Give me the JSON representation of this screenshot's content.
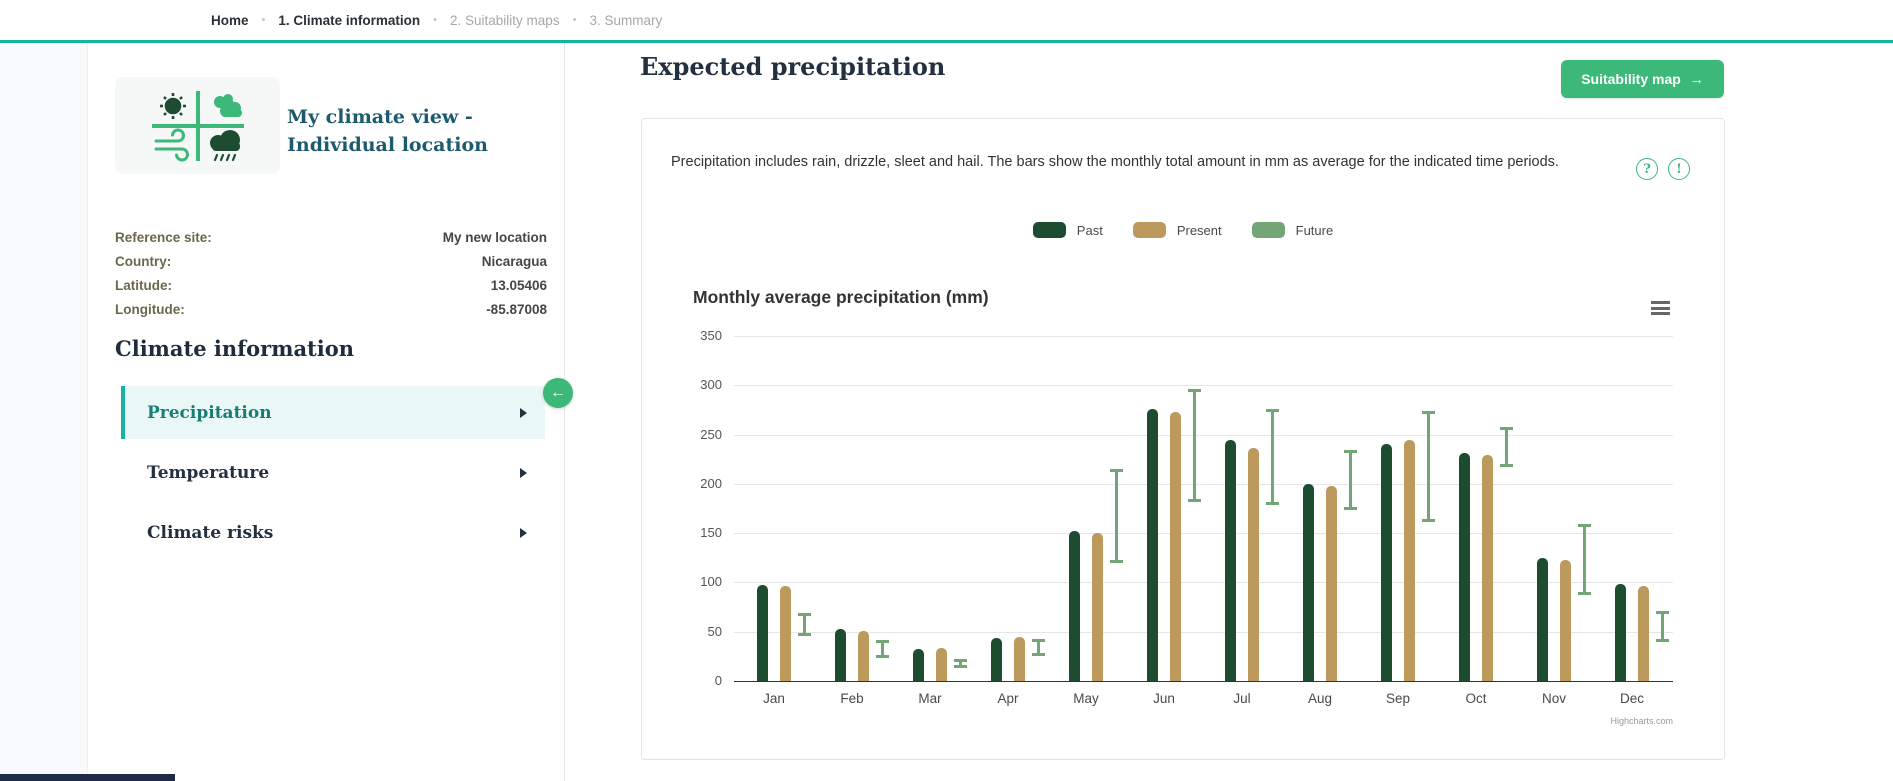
{
  "nav": {
    "separator": "•",
    "items": [
      {
        "label": "Home",
        "active": true
      },
      {
        "label": "1. Climate information",
        "active": true
      },
      {
        "label": "2. Suitability maps",
        "active": false
      },
      {
        "label": "3. Summary",
        "active": false
      }
    ]
  },
  "sidebar": {
    "title": "My climate view - Individual location",
    "info_rows": [
      {
        "label": "Reference site:",
        "value": "My new location"
      },
      {
        "label": "Country:",
        "value": "Nicaragua"
      },
      {
        "label": "Latitude:",
        "value": "13.05406"
      },
      {
        "label": "Longitude:",
        "value": "-85.87008"
      }
    ],
    "section_heading": "Climate information",
    "menu": [
      {
        "label": "Precipitation",
        "active": true
      },
      {
        "label": "Temperature",
        "active": false
      },
      {
        "label": "Climate risks",
        "active": false
      }
    ],
    "collapse_arrow": "←"
  },
  "main": {
    "page_title": "Expected precipitation",
    "suitability_button": {
      "label": "Suitability map",
      "arrow": "→"
    },
    "description": "Precipitation includes rain, drizzle, sleet and hail. The bars show the monthly total amount in mm as average for the indicated time periods.",
    "help": {
      "question": "?",
      "alert": "!"
    }
  },
  "chart_data": {
    "type": "bar",
    "title": "Monthly average precipitation (mm)",
    "categories": [
      "Jan",
      "Feb",
      "Mar",
      "Apr",
      "May",
      "Jun",
      "Jul",
      "Aug",
      "Sep",
      "Oct",
      "Nov",
      "Dec"
    ],
    "series": [
      {
        "name": "Past",
        "type": "column",
        "color": "#1e4c30",
        "values": [
          97,
          53,
          32,
          44,
          152,
          276,
          245,
          200,
          240,
          231,
          125,
          98
        ]
      },
      {
        "name": "Present",
        "type": "column",
        "color": "#bc9a5e",
        "values": [
          96,
          51,
          33,
          45,
          150,
          273,
          236,
          198,
          244,
          229,
          123,
          96
        ]
      },
      {
        "name": "Future",
        "type": "errorbar",
        "color": "#74a577",
        "ranges": [
          [
            46,
            69
          ],
          [
            23,
            42
          ],
          [
            13,
            22
          ],
          [
            25,
            43
          ],
          [
            120,
            215
          ],
          [
            182,
            296
          ],
          [
            179,
            276
          ],
          [
            173,
            234
          ],
          [
            161,
            274
          ],
          [
            217,
            258
          ],
          [
            87,
            159
          ],
          [
            40,
            71
          ]
        ]
      }
    ],
    "ylim": [
      0,
      350
    ],
    "y_ticks": [
      0,
      50,
      100,
      150,
      200,
      250,
      300,
      350
    ],
    "grid": true,
    "legend_position": "top",
    "credit": "Highcharts.com"
  },
  "colors": {
    "accent_teal": "#16b3a4",
    "accent_green": "#3cb878",
    "past": "#1e4c30",
    "present": "#bc9a5e",
    "future": "#74a577"
  }
}
